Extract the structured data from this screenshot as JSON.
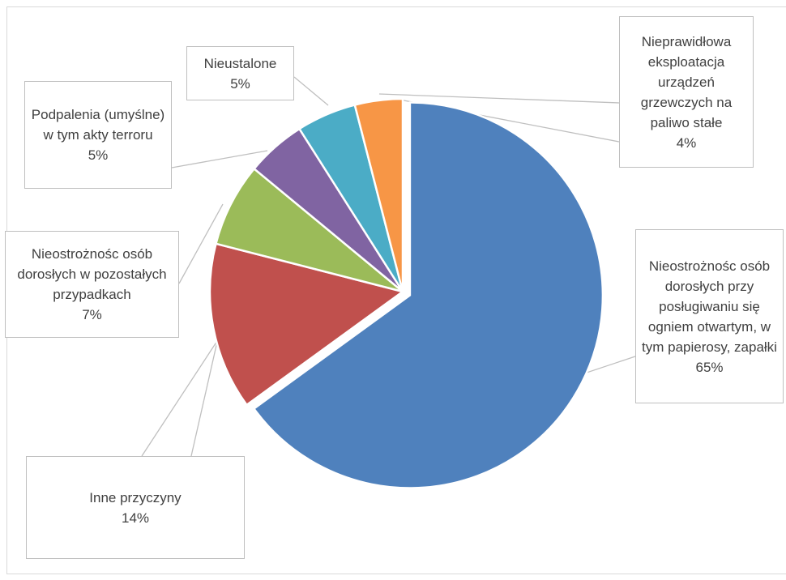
{
  "chart_data": {
    "type": "pie",
    "categories": [
      "Nieostrożnośc osób dorosłych przy posługiwaniu się ogniem otwartym, w tym papierosy, zapałki",
      "Inne przyczyny",
      "Nieostrożnośc osób dorosłych w pozostałych przypadkach",
      "Podpalenia (umyślne) w tym akty terroru",
      "Nieustalone",
      "Nieprawidłowa eksploatacja urządzeń grzewczych na paliwo stałe"
    ],
    "values": [
      65,
      14,
      7,
      5,
      5,
      4
    ],
    "value_labels": [
      "65%",
      "14%",
      "7%",
      "5%",
      "5%",
      "4%"
    ],
    "colors": [
      "#4f81bd",
      "#c0504d",
      "#9bbb59",
      "#8064a2",
      "#4bacc6",
      "#f79646"
    ]
  }
}
